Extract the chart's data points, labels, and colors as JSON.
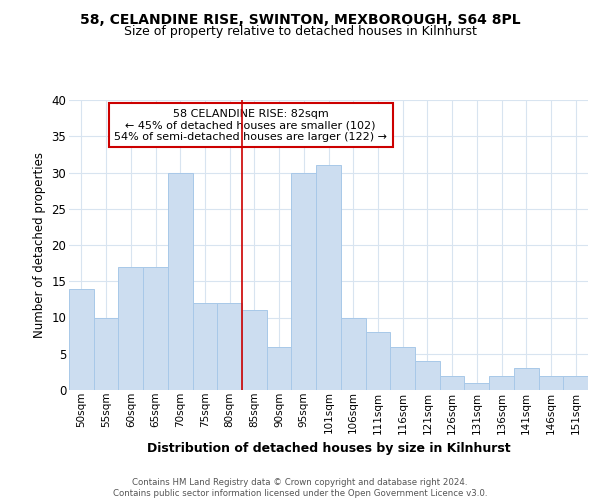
{
  "title1": "58, CELANDINE RISE, SWINTON, MEXBOROUGH, S64 8PL",
  "title2": "Size of property relative to detached houses in Kilnhurst",
  "xlabel": "Distribution of detached houses by size in Kilnhurst",
  "ylabel": "Number of detached properties",
  "categories": [
    "50sqm",
    "55sqm",
    "60sqm",
    "65sqm",
    "70sqm",
    "75sqm",
    "80sqm",
    "85sqm",
    "90sqm",
    "95sqm",
    "101sqm",
    "106sqm",
    "111sqm",
    "116sqm",
    "121sqm",
    "126sqm",
    "131sqm",
    "136sqm",
    "141sqm",
    "146sqm",
    "151sqm"
  ],
  "values": [
    14,
    10,
    17,
    17,
    30,
    12,
    12,
    11,
    6,
    30,
    31,
    10,
    8,
    6,
    4,
    2,
    1,
    2,
    3,
    2,
    2
  ],
  "bar_color": "#ccddf0",
  "bar_edge_color": "#a8c8e8",
  "background_color": "#ffffff",
  "fig_background_color": "#ffffff",
  "grid_color": "#d8e4f0",
  "annotation_box_text": "58 CELANDINE RISE: 82sqm\n← 45% of detached houses are smaller (102)\n54% of semi-detached houses are larger (122) →",
  "annotation_box_color": "#ffffff",
  "annotation_box_edge_color": "#cc0000",
  "vline_x": 6.5,
  "vline_color": "#cc0000",
  "footer_text": "Contains HM Land Registry data © Crown copyright and database right 2024.\nContains public sector information licensed under the Open Government Licence v3.0.",
  "ylim": [
    0,
    40
  ],
  "yticks": [
    0,
    5,
    10,
    15,
    20,
    25,
    30,
    35,
    40
  ]
}
